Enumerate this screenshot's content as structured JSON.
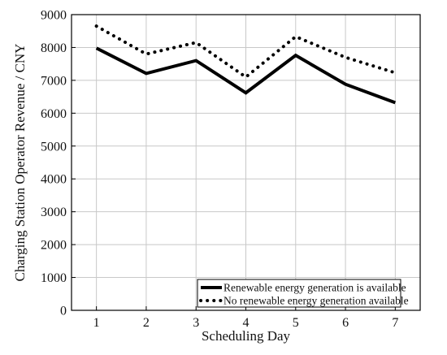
{
  "chart_data": {
    "type": "line",
    "title": "",
    "xlabel": "Scheduling Day",
    "ylabel": "Charging Station Operator Revenue / CNY",
    "x": [
      1,
      2,
      3,
      4,
      5,
      6,
      7
    ],
    "xlim": [
      0.5,
      7.5
    ],
    "ylim": [
      0,
      9000
    ],
    "xticks": [
      "1",
      "2",
      "3",
      "4",
      "5",
      "6",
      "7"
    ],
    "yticks": [
      "0",
      "1000",
      "2000",
      "3000",
      "4000",
      "5000",
      "6000",
      "7000",
      "8000",
      "9000"
    ],
    "grid": true,
    "legend_position": "bottom-right",
    "series": [
      {
        "name": "Renewable energy generation is available",
        "values": [
          7980,
          7210,
          7600,
          6620,
          7760,
          6880,
          6320
        ],
        "style": "solid",
        "color": "#000000"
      },
      {
        "name": "No renewable energy generation available",
        "values": [
          8650,
          7800,
          8150,
          7100,
          8330,
          7700,
          7230
        ],
        "style": "dotted",
        "color": "#000000"
      }
    ]
  }
}
